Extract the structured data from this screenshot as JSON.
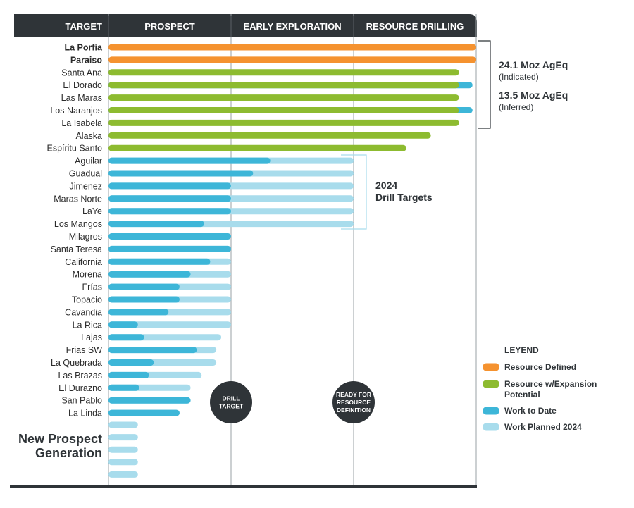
{
  "chart_data": {
    "type": "bar",
    "title": "",
    "stages": [
      "TARGET",
      "PROSPECT",
      "EARLY EXPLORATION",
      "RESOURCE DRILLING"
    ],
    "stage_note": "bar values are stage progress: 0-1 Prospect, 1-2 Early Exploration, 2-3 Resource Drilling",
    "xlim": [
      0,
      3
    ],
    "colors": {
      "resource_defined": "#f5922f",
      "resource_expansion": "#8dbb30",
      "work_to_date": "#3db6d8",
      "work_planned": "#a8dcec",
      "dark": "#2f3438"
    },
    "categories": [
      "La Porfía",
      "Paraiso",
      "Santa Ana",
      "El Dorado",
      "Las Maras",
      "Los Naranjos",
      "La Isabela",
      "Alaska",
      "Espíritu Santo",
      "Aguilar",
      "Guadual",
      "Jimenez",
      "Maras Norte",
      "LaYe",
      "Los Mangos",
      "Milagros",
      "Santa Teresa",
      "California",
      "Morena",
      "Frías",
      "Topacio",
      "Cavandia",
      "La Rica",
      "Lajas",
      "Frias SW",
      "La Quebrada",
      "Las Brazas",
      "El Durazno",
      "San Pablo",
      "La Linda"
    ],
    "bold_categories": [
      "La Porfía",
      "Paraiso"
    ],
    "series": [
      {
        "name": "Resource Defined",
        "key": "resource_defined",
        "values": [
          3,
          3,
          0,
          0,
          0,
          0,
          0,
          0,
          0,
          0,
          0,
          0,
          0,
          0,
          0,
          0,
          0,
          0,
          0,
          0,
          0,
          0,
          0,
          0,
          0,
          0,
          0,
          0,
          0,
          0
        ]
      },
      {
        "name": "Resource w/Expansion Potential",
        "key": "resource_expansion",
        "values": [
          0,
          0,
          2.86,
          2.86,
          2.86,
          2.86,
          2.86,
          2.63,
          2.43,
          0,
          0,
          0,
          0,
          0,
          0,
          0,
          0,
          0,
          0,
          0,
          0,
          0,
          0,
          0,
          0,
          0,
          0,
          0,
          0,
          0
        ]
      },
      {
        "name": "Work to Date",
        "key": "work_to_date",
        "values": [
          0,
          0,
          0,
          2.97,
          0,
          2.97,
          0,
          0,
          0,
          1.32,
          1.18,
          1.0,
          1.0,
          1.0,
          0.78,
          1.0,
          1.0,
          0.83,
          0.67,
          0.58,
          0.58,
          0.49,
          0.24,
          0.29,
          0.72,
          0.37,
          0.33,
          0.25,
          0.67,
          0.58
        ]
      },
      {
        "name": "Work Planned 2024",
        "key": "work_planned",
        "values": [
          0,
          0,
          0,
          0,
          0,
          0,
          0,
          0,
          0,
          2.0,
          2.0,
          2.0,
          2.0,
          2.0,
          2.0,
          1.0,
          1.0,
          1.0,
          1.0,
          1.0,
          1.0,
          1.0,
          1.0,
          0.92,
          0.88,
          0.88,
          0.76,
          0.67,
          0.67,
          0.58
        ]
      }
    ],
    "new_prospect": {
      "label_line1": "New Prospect",
      "label_line2": "Generation",
      "values": [
        0.24,
        0.24,
        0.24,
        0.24,
        0.24
      ]
    },
    "annotations": {
      "resource_1_value": "24.1 Moz AgEq",
      "resource_1_sub": "(Indicated)",
      "resource_2_value": "13.5 Moz AgEq",
      "resource_2_sub": "(Inferred)",
      "drill_targets_line1": "2024",
      "drill_targets_line2": "Drill Targets"
    },
    "milestones": [
      {
        "at": 1,
        "line1": "DRILL",
        "line2": "TARGET",
        "line3": ""
      },
      {
        "at": 2,
        "line1": "READY FOR",
        "line2": "RESOURCE",
        "line3": "DEFINITION"
      }
    ],
    "legend": {
      "title": "LEYEND",
      "items": [
        {
          "key": "resource_defined",
          "line1": "Resource Defined",
          "line2": ""
        },
        {
          "key": "resource_expansion",
          "line1": "Resource w/Expansion",
          "line2": "Potential"
        },
        {
          "key": "work_to_date",
          "line1": "Work to Date",
          "line2": ""
        },
        {
          "key": "work_planned",
          "line1": "Work Planned 2024",
          "line2": ""
        }
      ]
    }
  }
}
